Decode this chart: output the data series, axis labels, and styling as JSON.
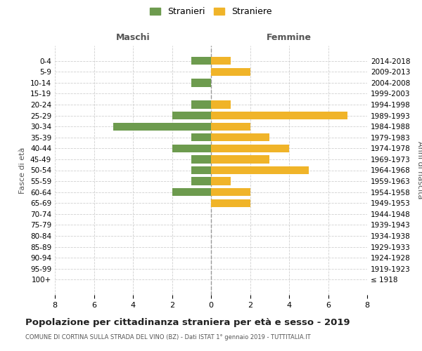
{
  "age_groups": [
    "0-4",
    "5-9",
    "10-14",
    "15-19",
    "20-24",
    "25-29",
    "30-34",
    "35-39",
    "40-44",
    "45-49",
    "50-54",
    "55-59",
    "60-64",
    "65-69",
    "70-74",
    "75-79",
    "80-84",
    "85-89",
    "90-94",
    "95-99",
    "100+"
  ],
  "birth_years": [
    "2014-2018",
    "2009-2013",
    "2004-2008",
    "1999-2003",
    "1994-1998",
    "1989-1993",
    "1984-1988",
    "1979-1983",
    "1974-1978",
    "1969-1973",
    "1964-1968",
    "1959-1963",
    "1954-1958",
    "1949-1953",
    "1944-1948",
    "1939-1943",
    "1934-1938",
    "1929-1933",
    "1924-1928",
    "1919-1923",
    "≤ 1918"
  ],
  "maschi": [
    1,
    0,
    1,
    0,
    1,
    2,
    5,
    1,
    2,
    1,
    1,
    1,
    2,
    0,
    0,
    0,
    0,
    0,
    0,
    0,
    0
  ],
  "femmine": [
    1,
    2,
    0,
    0,
    1,
    7,
    2,
    3,
    4,
    3,
    5,
    1,
    2,
    2,
    0,
    0,
    0,
    0,
    0,
    0,
    0
  ],
  "maschi_color": "#6d9b4e",
  "femmine_color": "#f0b429",
  "background_color": "#ffffff",
  "grid_color": "#d0d0d0",
  "zero_line_color": "#999999",
  "title": "Popolazione per cittadinanza straniera per età e sesso - 2019",
  "subtitle": "COMUNE DI CORTINA SULLA STRADA DEL VINO (BZ) - Dati ISTAT 1° gennaio 2019 - TUTTITALIA.IT",
  "xlabel_left": "Maschi",
  "xlabel_right": "Femmine",
  "ylabel_left": "Fasce di età",
  "ylabel_right": "Anni di nascita",
  "legend_maschi": "Stranieri",
  "legend_femmine": "Straniere",
  "xlim": 8,
  "bar_height": 0.72
}
